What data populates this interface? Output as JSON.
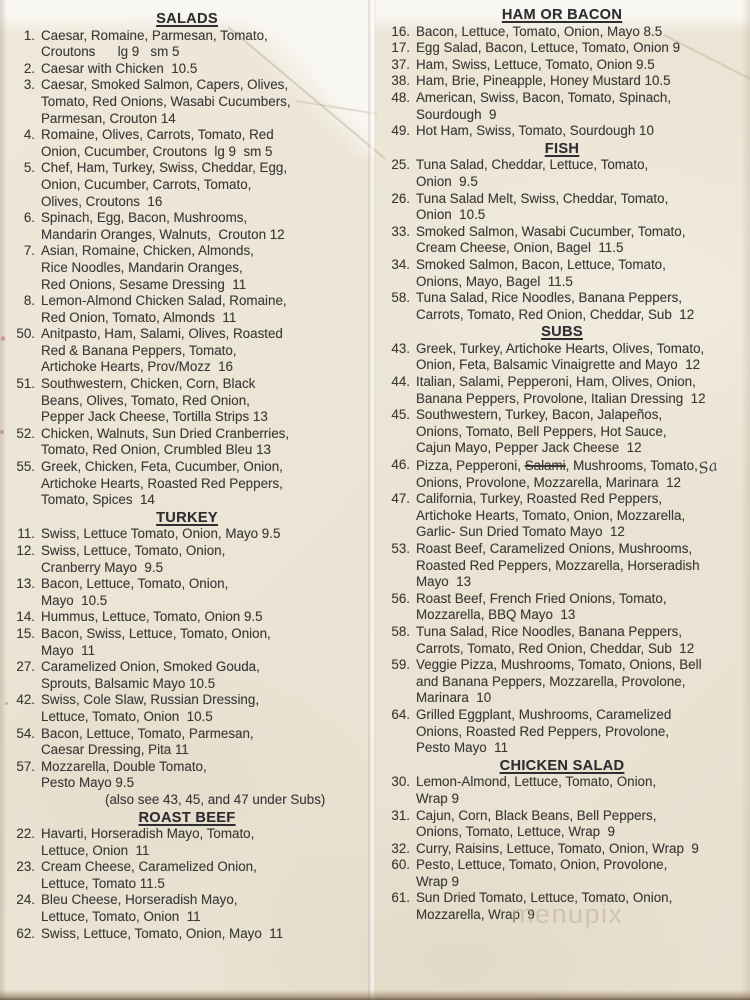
{
  "watermark": "menupix",
  "colors": {
    "paper": "#ece5d6",
    "ink": "#3b3a38"
  },
  "columns": [
    {
      "name": "left",
      "sections": [
        {
          "title": "SALADS",
          "items": [
            {
              "num": "1.",
              "lines": [
                "Caesar, Romaine, Parmesan, Tomato,",
                "Croutons      lg 9   sm 5"
              ]
            },
            {
              "num": "2.",
              "lines": [
                "Caesar with Chicken  10.5"
              ]
            },
            {
              "num": "3.",
              "lines": [
                "Caesar, Smoked Salmon, Capers, Olives,",
                "Tomato, Red Onions, Wasabi Cucumbers,",
                "Parmesan, Crouton 14"
              ]
            },
            {
              "num": "4.",
              "lines": [
                "Romaine, Olives, Carrots, Tomato, Red",
                "Onion, Cucumber, Croutons  lg 9  sm 5"
              ]
            },
            {
              "num": "5.",
              "lines": [
                "Chef, Ham, Turkey, Swiss, Cheddar, Egg,",
                "Onion, Cucumber, Carrots, Tomato,",
                "Olives, Croutons  16"
              ]
            },
            {
              "num": "6.",
              "lines": [
                "Spinach, Egg, Bacon, Mushrooms,",
                "Mandarin Oranges, Walnuts,  Crouton 12"
              ]
            },
            {
              "num": "7.",
              "lines": [
                "Asian, Romaine, Chicken, Almonds,",
                "Rice Noodles, Mandarin Oranges,",
                "Red Onions, Sesame Dressing  11"
              ]
            },
            {
              "num": "8.",
              "lines": [
                "Lemon-Almond Chicken Salad, Romaine,",
                "Red Onion, Tomato, Almonds  11"
              ]
            },
            {
              "num": "50.",
              "lines": [
                "Anitpasto, Ham, Salami, Olives, Roasted",
                "Red & Banana Peppers, Tomato,",
                "Artichoke Hearts, Prov/Mozz  16"
              ]
            },
            {
              "num": "51.",
              "lines": [
                "Southwestern, Chicken, Corn, Black",
                "Beans, Olives, Tomato, Red Onion,",
                "Pepper Jack Cheese, Tortilla Strips 13"
              ]
            },
            {
              "num": "52.",
              "lines": [
                "Chicken, Walnuts, Sun Dried Cranberries,",
                "Tomato, Red Onion, Crumbled Bleu 13"
              ]
            },
            {
              "num": "55.",
              "lines": [
                "Greek, Chicken, Feta, Cucumber, Onion,",
                "Artichoke Hearts, Roasted Red Peppers,",
                "Tomato, Spices  14"
              ]
            }
          ]
        },
        {
          "title": "TURKEY",
          "items": [
            {
              "num": "11.",
              "lines": [
                "Swiss, Lettuce Tomato, Onion, Mayo 9.5"
              ]
            },
            {
              "num": "12.",
              "lines": [
                "Swiss, Lettuce, Tomato, Onion,",
                "Cranberry Mayo  9.5"
              ]
            },
            {
              "num": "13.",
              "lines": [
                "Bacon, Lettuce, Tomato, Onion,",
                "Mayo  10.5"
              ]
            },
            {
              "num": "14.",
              "lines": [
                "Hummus, Lettuce, Tomato, Onion 9.5"
              ]
            },
            {
              "num": "15.",
              "lines": [
                "Bacon, Swiss, Lettuce, Tomato, Onion,",
                "Mayo  11"
              ]
            },
            {
              "num": "27.",
              "lines": [
                "Caramelized Onion, Smoked Gouda,",
                "Sprouts, Balsamic Mayo 10.5"
              ]
            },
            {
              "num": "42.",
              "lines": [
                "Swiss, Cole Slaw, Russian Dressing,",
                "Lettuce, Tomato, Onion  10.5"
              ]
            },
            {
              "num": "54.",
              "lines": [
                "Bacon, Lettuce, Tomato, Parmesan,",
                "Caesar Dressing, Pita 11"
              ]
            },
            {
              "num": "57.",
              "lines": [
                "Mozzarella, Double Tomato,",
                "Pesto Mayo 9.5"
              ],
              "note": "(also see 43, 45, and 47 under Subs)"
            }
          ]
        },
        {
          "title": "ROAST BEEF",
          "items": [
            {
              "num": "22.",
              "lines": [
                "Havarti, Horseradish Mayo, Tomato,",
                "Lettuce, Onion  11"
              ]
            },
            {
              "num": "23.",
              "lines": [
                "Cream Cheese, Caramelized Onion,",
                "Lettuce, Tomato 11.5"
              ]
            },
            {
              "num": "24.",
              "lines": [
                "Bleu Cheese, Horseradish Mayo,",
                "Lettuce, Tomato, Onion  11"
              ]
            },
            {
              "num": "62.",
              "lines": [
                "Swiss, Lettuce, Tomato, Onion, Mayo  11"
              ]
            }
          ]
        }
      ]
    },
    {
      "name": "right",
      "sections": [
        {
          "title": "HAM OR BACON",
          "items": [
            {
              "num": "16.",
              "lines": [
                "Bacon, Lettuce, Tomato, Onion, Mayo 8.5"
              ]
            },
            {
              "num": "17.",
              "lines": [
                "Egg Salad, Bacon, Lettuce, Tomato, Onion 9"
              ]
            },
            {
              "num": "37.",
              "lines": [
                "Ham, Swiss, Lettuce, Tomato, Onion 9.5"
              ]
            },
            {
              "num": "38.",
              "lines": [
                "Ham, Brie, Pineapple, Honey Mustard 10.5"
              ]
            },
            {
              "num": "48.",
              "lines": [
                "American, Swiss, Bacon, Tomato, Spinach,",
                "Sourdough  9"
              ]
            },
            {
              "num": "49.",
              "lines": [
                "Hot Ham, Swiss, Tomato, Sourdough 10"
              ]
            }
          ]
        },
        {
          "title": "FISH",
          "items": [
            {
              "num": "25.",
              "lines": [
                "Tuna Salad, Cheddar, Lettuce, Tomato,",
                "Onion  9.5"
              ]
            },
            {
              "num": "26.",
              "lines": [
                "Tuna Salad Melt, Swiss, Cheddar, Tomato,",
                "Onion  10.5"
              ]
            },
            {
              "num": "33.",
              "lines": [
                "Smoked Salmon, Wasabi Cucumber, Tomato,",
                "Cream Cheese, Onion, Bagel  11.5"
              ]
            },
            {
              "num": "34.",
              "lines": [
                "Smoked Salmon, Bacon, Lettuce, Tomato,",
                "Onions, Mayo, Bagel  11.5"
              ]
            },
            {
              "num": "58.",
              "lines": [
                "Tuna Salad, Rice Noodles, Banana Peppers,",
                "Carrots, Tomato, Red Onion, Cheddar, Sub  12"
              ]
            }
          ]
        },
        {
          "title": "SUBS",
          "items": [
            {
              "num": "43.",
              "lines": [
                "Greek, Turkey, Artichoke Hearts, Olives, Tomato,",
                "Onion, Feta, Balsamic Vinaigrette and Mayo  12"
              ]
            },
            {
              "num": "44.",
              "lines": [
                "Italian, Salami, Pepperoni, Ham, Olives, Onion,",
                "Banana Peppers, Provolone, Italian Dressing  12"
              ]
            },
            {
              "num": "45.",
              "lines": [
                "Southwestern, Turkey, Bacon, Jalapeños,",
                "Onions, Tomato, Bell Peppers, Hot Sauce,",
                "Cajun Mayo, Pepper Jack Cheese  12"
              ]
            },
            {
              "num": "46.",
              "lines": [
                "Pizza, Pepperoni, ~Salami~, Mushrooms, Tomato,",
                "Onions, Provolone, Mozzarella, Marinara  12"
              ],
              "annotation": {
                "text": "Sa",
                "after_line": 0
              }
            },
            {
              "num": "47.",
              "lines": [
                "California, Turkey, Roasted Red Peppers,",
                "Artichoke Hearts, Tomato, Onion, Mozzarella,",
                "Garlic- Sun Dried Tomato Mayo  12"
              ]
            },
            {
              "num": "53.",
              "lines": [
                "Roast Beef, Caramelized Onions, Mushrooms,",
                "Roasted Red Peppers, Mozzarella, Horseradish",
                "Mayo  13"
              ]
            },
            {
              "num": "56.",
              "lines": [
                "Roast Beef, French Fried Onions, Tomato,",
                "Mozzarella, BBQ Mayo  13"
              ]
            },
            {
              "num": "58.",
              "lines": [
                "Tuna Salad, Rice Noodles, Banana Peppers,",
                "Carrots, Tomato, Red Onion, Cheddar, Sub  12"
              ]
            },
            {
              "num": "59.",
              "lines": [
                "Veggie Pizza, Mushrooms, Tomato, Onions, Bell",
                "and Banana Peppers, Mozzarella, Provolone,",
                "Marinara  10"
              ]
            },
            {
              "num": "64.",
              "lines": [
                "Grilled Eggplant, Mushrooms, Caramelized",
                "Onions, Roasted Red Peppers, Provolone,",
                "Pesto Mayo  11"
              ]
            }
          ]
        },
        {
          "title": "CHICKEN SALAD",
          "items": [
            {
              "num": "30.",
              "lines": [
                "Lemon-Almond, Lettuce, Tomato, Onion,",
                "Wrap 9"
              ]
            },
            {
              "num": "31.",
              "lines": [
                "Cajun, Corn, Black Beans, Bell Peppers,",
                "Onions, Tomato, Lettuce, Wrap  9"
              ]
            },
            {
              "num": "32.",
              "lines": [
                "Curry, Raisins, Lettuce, Tomato, Onion, Wrap  9"
              ]
            },
            {
              "num": "60.",
              "lines": [
                "Pesto, Lettuce, Tomato, Onion, Provolone,",
                "Wrap 9"
              ]
            },
            {
              "num": "61.",
              "lines": [
                "Sun Dried Tomato, Lettuce, Tomato, Onion,",
                "Mozzarella, Wrap  9"
              ]
            }
          ]
        }
      ]
    }
  ]
}
